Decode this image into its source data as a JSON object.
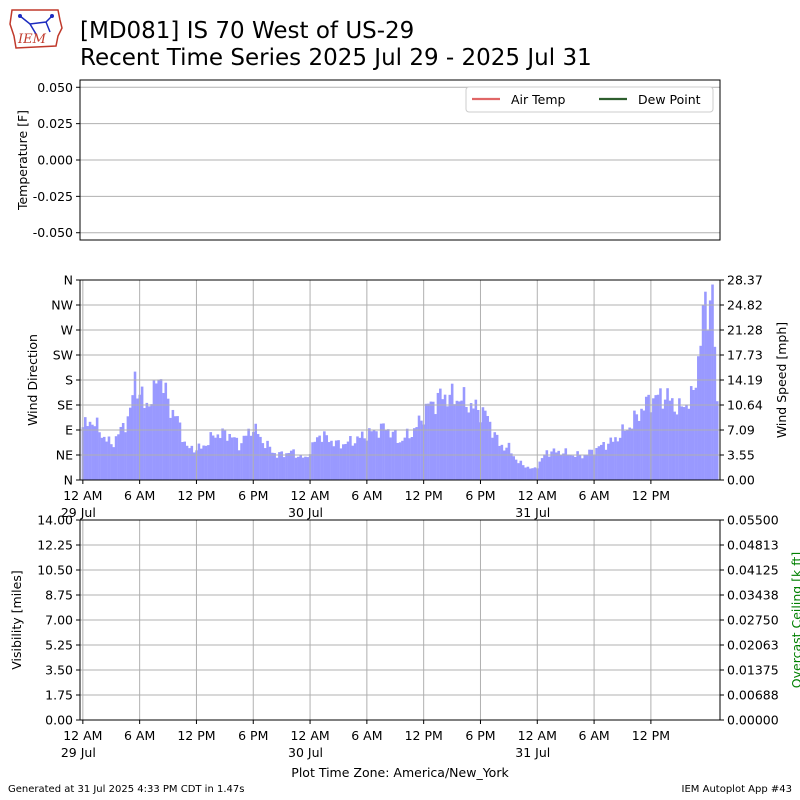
{
  "header": {
    "title_line1": "[MD081] IS 70 West of US-29",
    "title_line2": "Recent Time Series 2025 Jul 29 - 2025 Jul 31",
    "logo_text": "IEM"
  },
  "footer": {
    "generated": "Generated at 31 Jul 2025 4:33 PM CDT in 1.47s",
    "app": "IEM Autoplot App #43"
  },
  "chart_data": [
    {
      "type": "line",
      "ylabel": "Temperature [F]",
      "ylim": [
        -0.055,
        0.055
      ],
      "yticks": [
        "0.050",
        "0.025",
        "0.000",
        "-0.025",
        "-0.050"
      ],
      "ytick_values": [
        0.05,
        0.025,
        0,
        -0.025,
        -0.05
      ],
      "grid": true,
      "legend_placement": "top-right",
      "series": [
        {
          "name": "Air Temp",
          "color": "#e06666",
          "values": []
        },
        {
          "name": "Dew Point",
          "color": "#2e5e2e",
          "values": []
        }
      ]
    },
    {
      "type": "bar",
      "ylabel_left": "Wind Direction",
      "ylabel_right": "Wind Speed [mph]",
      "yticks_left": [
        "N",
        "NW",
        "W",
        "SW",
        "S",
        "SE",
        "E",
        "NE",
        "N"
      ],
      "yticks_right": [
        "28.37",
        "24.82",
        "21.28",
        "17.73",
        "14.19",
        "10.64",
        "7.09",
        "3.55",
        "0.00"
      ],
      "y_right_lim": [
        0,
        28.37
      ],
      "bar_color": "#9999ff",
      "grid": true,
      "x_ticks": [
        "12 AM",
        "6 AM",
        "12 PM",
        "6 PM",
        "12 AM",
        "6 AM",
        "12 PM",
        "6 PM",
        "12 AM",
        "6 AM",
        "12 PM"
      ],
      "x_tick_hours": [
        0,
        6,
        12,
        18,
        24,
        30,
        36,
        42,
        48,
        54,
        60
      ],
      "x_date_labels": [
        {
          "label": "29 Jul",
          "hour": 0
        },
        {
          "label": "30 Jul",
          "hour": 24
        },
        {
          "label": "31 Jul",
          "hour": 48
        }
      ],
      "x_range_hours": [
        -0.3,
        67.3
      ],
      "wind_speed_anchors": [
        [
          0,
          7.5
        ],
        [
          1,
          8.5
        ],
        [
          2,
          6.5
        ],
        [
          3,
          5
        ],
        [
          4,
          7
        ],
        [
          5,
          9.5
        ],
        [
          5.5,
          14.5
        ],
        [
          6.5,
          10.5
        ],
        [
          7.5,
          12
        ],
        [
          8,
          15.5
        ],
        [
          9,
          11
        ],
        [
          10,
          8.5
        ],
        [
          11,
          4.5
        ],
        [
          12.5,
          4.5
        ],
        [
          14,
          6.5
        ],
        [
          15.5,
          6.5
        ],
        [
          16.5,
          5
        ],
        [
          18,
          7.5
        ],
        [
          19,
          5.5
        ],
        [
          20.5,
          3.5
        ],
        [
          22,
          4
        ],
        [
          23.5,
          3
        ],
        [
          25,
          6.5
        ],
        [
          27,
          5
        ],
        [
          28.5,
          5.5
        ],
        [
          30,
          6.5
        ],
        [
          32,
          7.5
        ],
        [
          33.5,
          5.5
        ],
        [
          35,
          7
        ],
        [
          36.5,
          10.5
        ],
        [
          38,
          12
        ],
        [
          40,
          11.5
        ],
        [
          41,
          10.5
        ],
        [
          42.5,
          9.5
        ],
        [
          44,
          5
        ],
        [
          45,
          4.5
        ],
        [
          46,
          2.5
        ],
        [
          47.5,
          1.5
        ],
        [
          48,
          2
        ],
        [
          49,
          4
        ],
        [
          50.5,
          4
        ],
        [
          52,
          3.5
        ],
        [
          53,
          3.5
        ],
        [
          55,
          5
        ],
        [
          56,
          5.5
        ],
        [
          58,
          8
        ],
        [
          59,
          10
        ],
        [
          60,
          11.5
        ],
        [
          61.5,
          12
        ],
        [
          63,
          10
        ],
        [
          64.5,
          12
        ],
        [
          65.5,
          23
        ],
        [
          66.5,
          27
        ],
        [
          67,
          10
        ]
      ]
    },
    {
      "type": "line",
      "ylabel_left": "Visibility [miles]",
      "ylabel_right": "Overcast Ceiling [k ft]",
      "yticks_left": [
        "14.00",
        "12.25",
        "10.50",
        "8.75",
        "7.00",
        "5.25",
        "3.50",
        "1.75",
        "0.00"
      ],
      "yticks_right": [
        "0.05500",
        "0.04813",
        "0.04125",
        "0.03438",
        "0.02750",
        "0.02063",
        "0.01375",
        "0.00688",
        "0.00000"
      ],
      "ylim_left": [
        0,
        14
      ],
      "ylim_right": [
        0,
        0.055
      ],
      "x_ticks": [
        "12 AM",
        "6 AM",
        "12 PM",
        "6 PM",
        "12 AM",
        "6 AM",
        "12 PM",
        "6 PM",
        "12 AM",
        "6 AM",
        "12 PM"
      ],
      "x_tick_hours": [
        0,
        6,
        12,
        18,
        24,
        30,
        36,
        42,
        48,
        54,
        60
      ],
      "x_date_labels": [
        {
          "label": "29 Jul",
          "hour": 0
        },
        {
          "label": "30 Jul",
          "hour": 24
        },
        {
          "label": "31 Jul",
          "hour": 48
        }
      ],
      "xlabel": "Plot Time Zone: America/New_York",
      "grid": true,
      "right_axis_color": "#008000",
      "series": []
    }
  ]
}
